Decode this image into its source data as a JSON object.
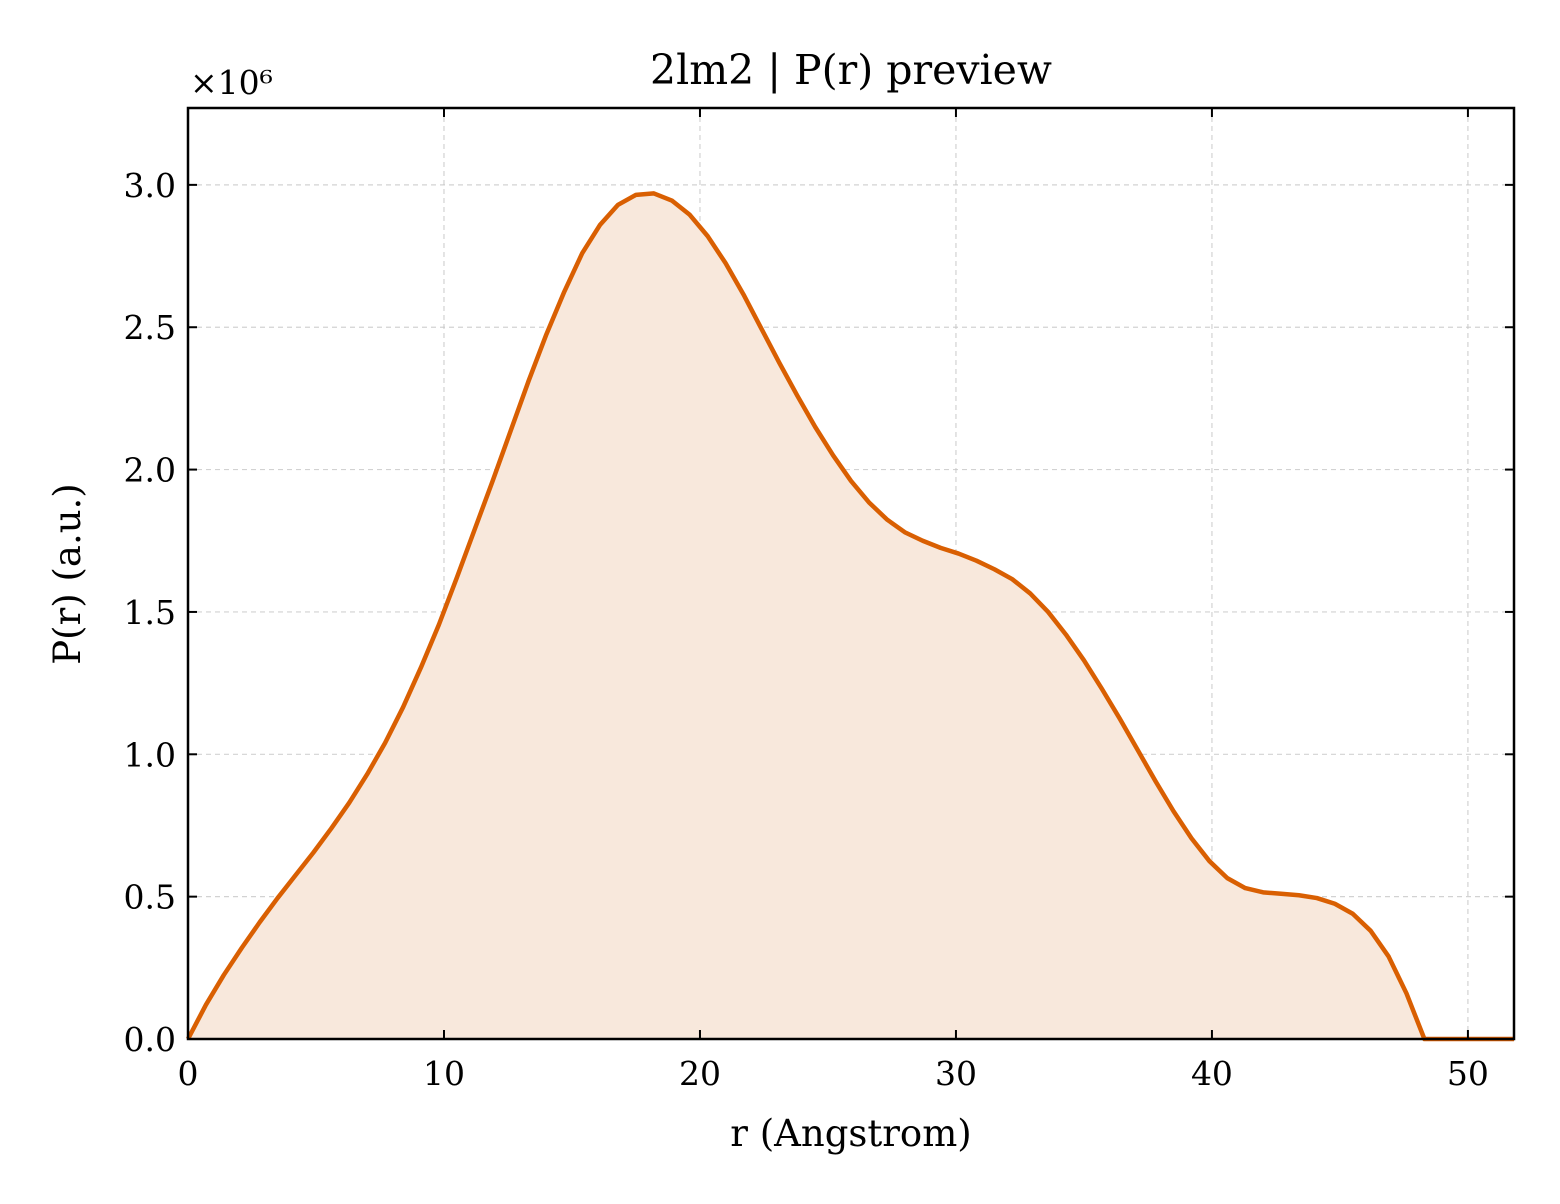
{
  "chart_data": {
    "type": "area",
    "title": "2lm2 | P(r) preview",
    "xlabel": "r (Angstrom)",
    "ylabel": "P(r) (a.u.)",
    "y_multiplier_label": "×10⁶",
    "xlim": [
      0,
      51.8
    ],
    "ylim": [
      0,
      3.27
    ],
    "y_scale_factor": 1000000,
    "x_ticks": [
      0,
      10,
      20,
      30,
      40,
      50
    ],
    "y_ticks": [
      0.0,
      0.5,
      1.0,
      1.5,
      2.0,
      2.5,
      3.0
    ],
    "x_tick_labels": [
      "0",
      "10",
      "20",
      "30",
      "40",
      "50"
    ],
    "y_tick_labels": [
      "0.0",
      "0.5",
      "1.0",
      "1.5",
      "2.0",
      "2.5",
      "3.0"
    ],
    "grid": true,
    "line_color": "#d95f02",
    "fill_color": "#f8e8dc",
    "series": [
      {
        "x": [
          0,
          0.7,
          1.4,
          2.1,
          2.8,
          3.5,
          4.2,
          4.9,
          5.6,
          6.3,
          7.0,
          7.7,
          8.4,
          9.1,
          9.8,
          10.5,
          11.2,
          11.9,
          12.6,
          13.3,
          14.0,
          14.7,
          15.4,
          16.1,
          16.8,
          17.5,
          18.2,
          18.9,
          19.6,
          20.3,
          21.0,
          21.7,
          22.4,
          23.1,
          23.8,
          24.5,
          25.2,
          25.9,
          26.6,
          27.3,
          28.0,
          28.7,
          29.4,
          30.1,
          30.8,
          31.5,
          32.2,
          32.9,
          33.6,
          34.3,
          35.0,
          35.7,
          36.4,
          37.1,
          37.8,
          38.5,
          39.2,
          39.9,
          40.6,
          41.3,
          42.0,
          42.7,
          43.4,
          44.1,
          44.8,
          45.5,
          46.2,
          46.9,
          47.6,
          48.3,
          49.0,
          49.7,
          50.4,
          51.1,
          51.8
        ],
        "y": [
          0.0,
          0.12,
          0.225,
          0.32,
          0.41,
          0.495,
          0.575,
          0.655,
          0.74,
          0.83,
          0.93,
          1.04,
          1.165,
          1.305,
          1.455,
          1.62,
          1.79,
          1.96,
          2.135,
          2.31,
          2.475,
          2.625,
          2.76,
          2.86,
          2.93,
          2.965,
          2.97,
          2.945,
          2.895,
          2.82,
          2.725,
          2.615,
          2.495,
          2.375,
          2.26,
          2.15,
          2.05,
          1.96,
          1.885,
          1.825,
          1.78,
          1.75,
          1.725,
          1.705,
          1.68,
          1.65,
          1.615,
          1.565,
          1.5,
          1.42,
          1.33,
          1.23,
          1.125,
          1.015,
          0.905,
          0.8,
          0.705,
          0.625,
          0.565,
          0.53,
          0.515,
          0.51,
          0.505,
          0.495,
          0.475,
          0.44,
          0.38,
          0.29,
          0.16,
          0.0,
          0.0,
          0.0,
          0.0,
          0.0,
          0.0
        ]
      }
    ]
  }
}
